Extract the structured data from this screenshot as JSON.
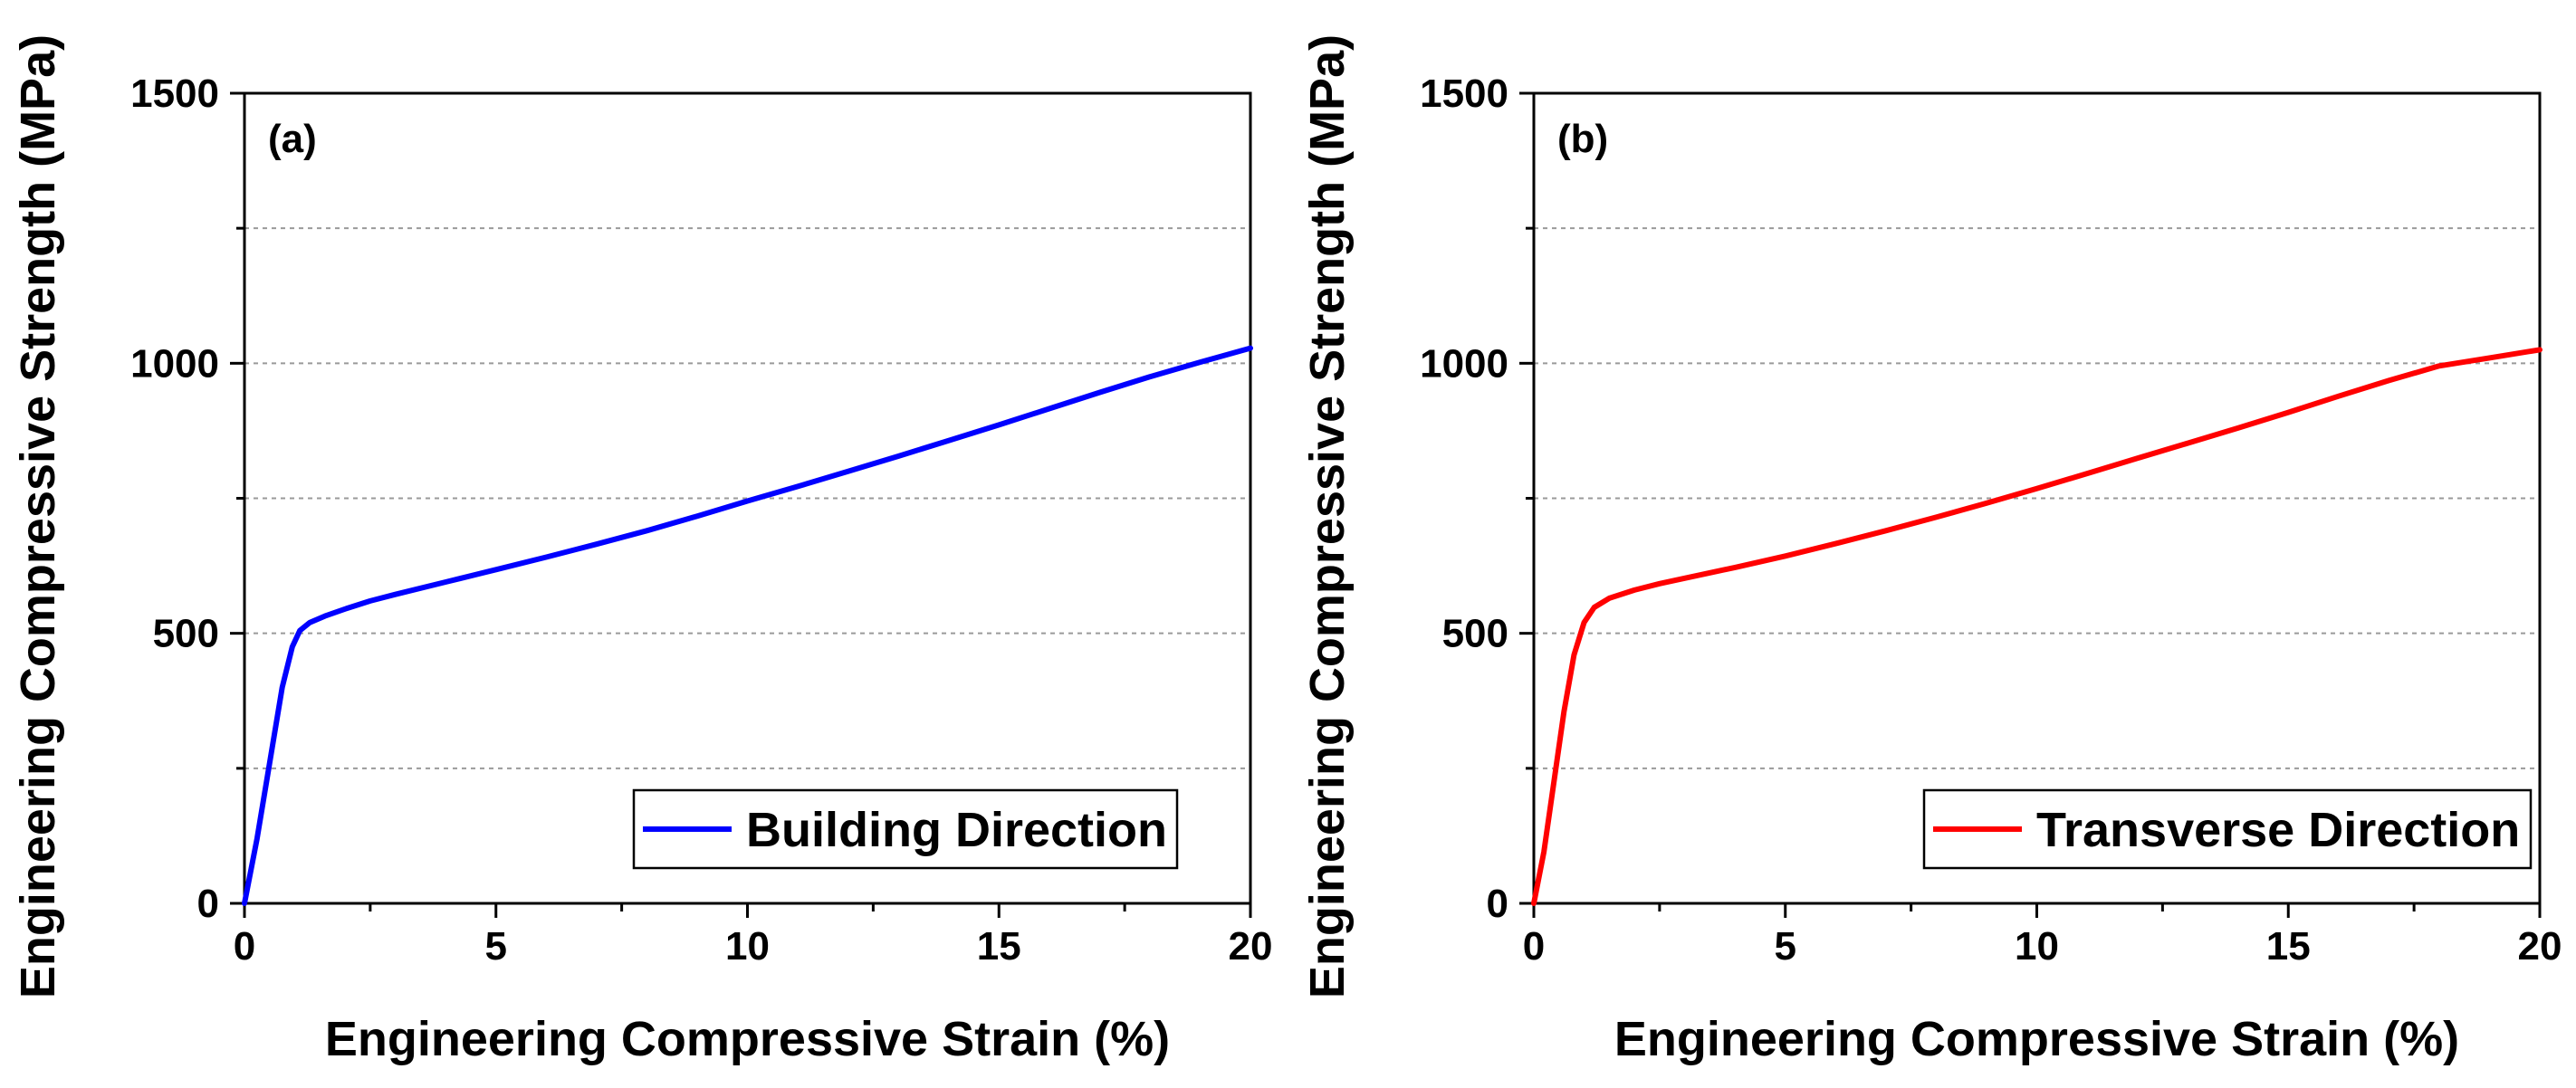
{
  "chart_data": [
    {
      "type": "line",
      "panel_label": "(a)",
      "xlabel": "Engineering Compressive Strain (%)",
      "ylabel": "Engineering Compressive Strength (MPa)",
      "xlim": [
        0,
        20
      ],
      "ylim": [
        0,
        1500
      ],
      "xticks": [
        0,
        5,
        10,
        15,
        20
      ],
      "yticks": [
        0,
        500,
        1000,
        1500
      ],
      "grid": true,
      "legend_position": "bottom-right",
      "series": [
        {
          "name": "Building Direction",
          "color": "#0000ff",
          "x": [
            0,
            0.25,
            0.5,
            0.75,
            0.95,
            1.1,
            1.3,
            1.6,
            2,
            2.5,
            3,
            4,
            5,
            6,
            7,
            8,
            9,
            10,
            11,
            12,
            13,
            14,
            15,
            16,
            17,
            18,
            19,
            20
          ],
          "y": [
            0,
            120,
            260,
            400,
            475,
            505,
            520,
            532,
            545,
            560,
            572,
            595,
            618,
            641,
            665,
            690,
            717,
            745,
            772,
            800,
            828,
            857,
            886,
            916,
            946,
            975,
            1002,
            1028
          ]
        }
      ]
    },
    {
      "type": "line",
      "panel_label": "(b)",
      "xlabel": "Engineering Compressive Strain (%)",
      "ylabel": "Engineering Compressive Strength (MPa)",
      "xlim": [
        0,
        20
      ],
      "ylim": [
        0,
        1500
      ],
      "xticks": [
        0,
        5,
        10,
        15,
        20
      ],
      "yticks": [
        0,
        500,
        1000,
        1500
      ],
      "grid": true,
      "legend_position": "bottom-right",
      "series": [
        {
          "name": "Transverse Direction",
          "color": "#ff0000",
          "x": [
            0,
            0.2,
            0.4,
            0.6,
            0.8,
            1.0,
            1.2,
            1.5,
            2,
            2.5,
            3,
            4,
            5,
            6,
            7,
            8,
            9,
            10,
            11,
            12,
            13,
            14,
            15,
            16,
            17,
            18,
            19,
            20
          ],
          "y": [
            0,
            95,
            225,
            355,
            460,
            520,
            548,
            565,
            580,
            592,
            602,
            622,
            643,
            666,
            690,
            715,
            741,
            768,
            796,
            824,
            852,
            880,
            909,
            939,
            968,
            995,
            1010,
            1025
          ]
        }
      ]
    }
  ]
}
